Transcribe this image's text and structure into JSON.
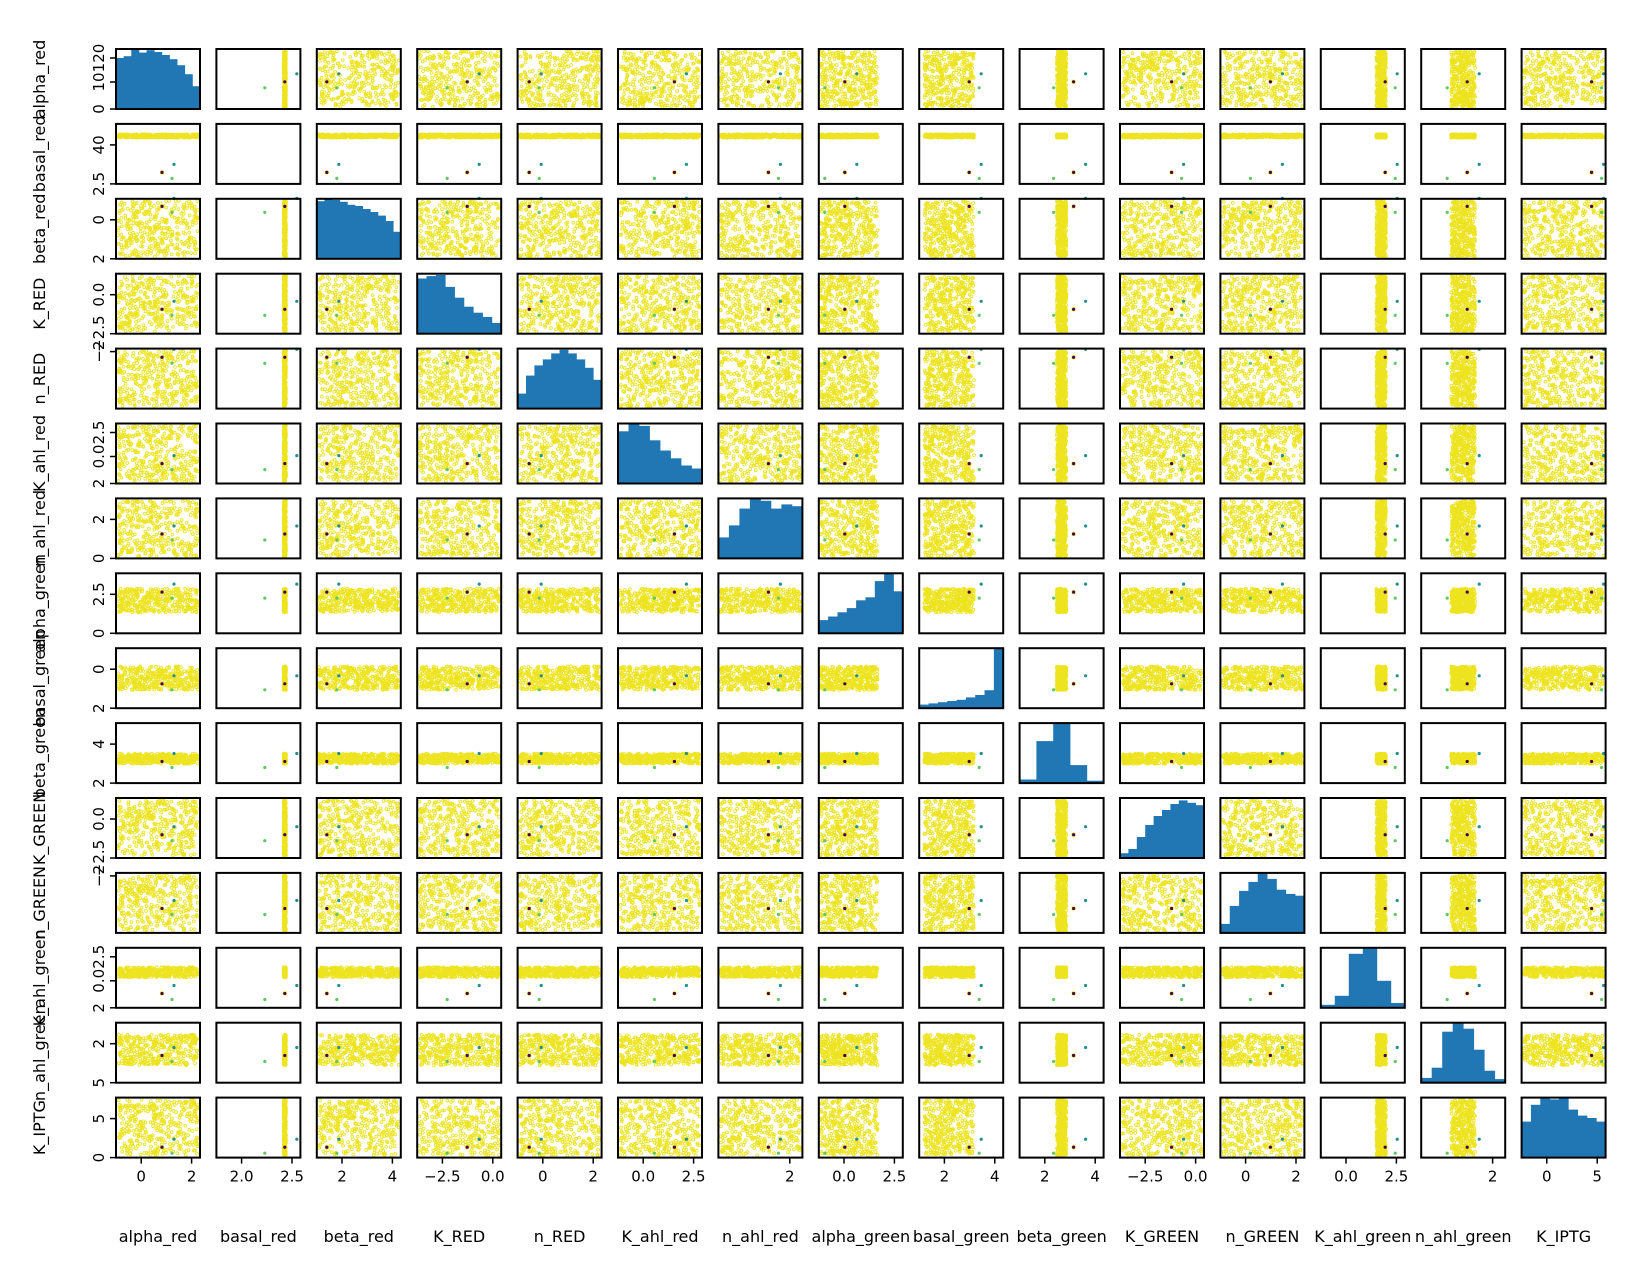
{
  "chart_data": {
    "type": "scatter",
    "title": "",
    "variables": [
      "alpha_red",
      "basal_red",
      "beta_red",
      "K_RED",
      "n_RED",
      "K_ahl_red",
      "n_ahl_red",
      "alpha_green",
      "basal_green",
      "beta_green",
      "K_GREEN",
      "n_GREEN",
      "K_ahl_green",
      "n_ahl_green",
      "K_IPTG"
    ],
    "diagonal": "histogram",
    "off_diagonal": "scatter",
    "grid": false,
    "colors": {
      "scatter": "#ede31e",
      "histogram": "#2077b4",
      "highlight_dark": "#440154",
      "highlight_green": "#5ec962",
      "highlight_teal": "#21918c"
    },
    "xtick_labels": [
      [
        "0",
        "2"
      ],
      [
        "2.0",
        "2.5"
      ],
      [
        "2",
        "4"
      ],
      [
        "−2.5",
        "0.0"
      ],
      [
        "0",
        "2"
      ],
      [
        "0.0",
        "2.5"
      ],
      [
        "2"
      ],
      [
        "0.0",
        "2.5"
      ],
      [
        "2",
        "4"
      ],
      [
        "2",
        "4"
      ],
      [
        "−2.5",
        "0.0"
      ],
      [
        "0",
        "2"
      ],
      [
        "0.0",
        "2.5"
      ],
      [
        "2"
      ],
      [
        "0",
        "5"
      ]
    ],
    "ytick_labels": [
      [
        "0",
        "10",
        "120"
      ],
      [
        "2.5",
        "40"
      ],
      [
        "2",
        "0"
      ],
      [
        "−2.5",
        "0.0"
      ],
      [
        "−2"
      ],
      [
        "2",
        "0.0",
        "2.5"
      ],
      [
        "0",
        "2"
      ],
      [
        "0",
        "2.5"
      ],
      [
        "2",
        "0"
      ],
      [
        "2",
        "4"
      ],
      [
        "−2.5",
        "0.0"
      ],
      [
        "−2"
      ],
      [
        "2",
        "0.0",
        "2.5"
      ],
      [
        "5",
        "2"
      ],
      [
        "0",
        "5"
      ]
    ],
    "histograms": [
      [
        0.85,
        0.88,
        1.0,
        0.94,
        0.98,
        0.95,
        0.9,
        0.83,
        0.73,
        0.58,
        0.38
      ],
      [],
      [
        0.96,
        1.0,
        0.98,
        0.95,
        0.9,
        0.88,
        0.83,
        0.78,
        0.72,
        0.63,
        0.45
      ],
      [
        0.92,
        0.96,
        0.98,
        0.78,
        0.6,
        0.45,
        0.35,
        0.28,
        0.18
      ],
      [
        0.25,
        0.55,
        0.72,
        0.82,
        0.92,
        0.98,
        0.92,
        0.82,
        0.68,
        0.48
      ],
      [
        0.87,
        1.0,
        0.96,
        0.72,
        0.55,
        0.42,
        0.3,
        0.25
      ],
      [
        0.35,
        0.55,
        0.83,
        1.0,
        0.96,
        0.83,
        0.9,
        0.87
      ],
      [
        0.22,
        0.28,
        0.35,
        0.42,
        0.55,
        0.6,
        0.87,
        1.0,
        0.7
      ],
      [
        0.06,
        0.08,
        0.1,
        0.12,
        0.14,
        0.18,
        0.22,
        0.3,
        1.0
      ],
      [
        0.06,
        0.7,
        1.0,
        0.3,
        0.04
      ],
      [
        0.08,
        0.15,
        0.35,
        0.55,
        0.7,
        0.8,
        0.9,
        0.96,
        0.92,
        0.88
      ],
      [
        0.15,
        0.45,
        0.7,
        0.85,
        1.0,
        0.9,
        0.72,
        0.65,
        0.62
      ],
      [
        0.05,
        0.2,
        0.9,
        1.0,
        0.45,
        0.08
      ],
      [
        0.08,
        0.25,
        0.85,
        1.0,
        0.9,
        0.55,
        0.2,
        0.06
      ],
      [
        0.6,
        0.88,
        1.0,
        0.97,
        1.0,
        0.8,
        0.7,
        0.66,
        0.6
      ]
    ]
  }
}
